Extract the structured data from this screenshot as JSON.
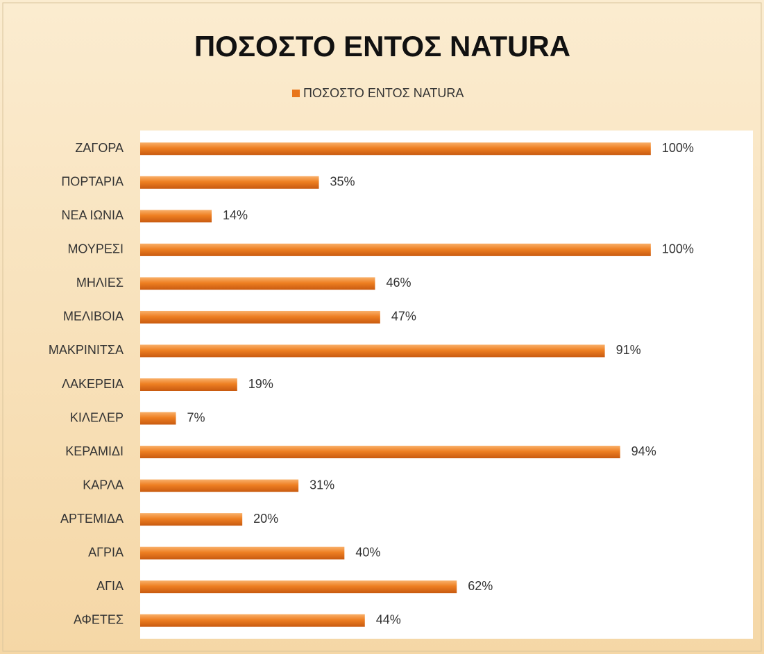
{
  "chart_data": {
    "type": "bar",
    "orientation": "horizontal",
    "title": "ΠΟΣΟΣΤΟ ΕΝΤΟΣ NATURA",
    "categories": [
      "ΖΑΓΟΡΑ",
      "ΠΟΡΤΑΡΙΑ",
      "ΝΕΑ ΙΩΝΙΑ",
      "ΜΟΥΡΕΣΙ",
      "ΜΗΛΙΕΣ",
      "ΜΕΛΙΒΟΙΑ",
      "ΜΑΚΡΙΝΙΤΣΑ",
      "ΛΑΚΕΡΕΙΑ",
      "ΚΙΛΕΛΕΡ",
      "ΚΕΡΑΜΙΔΙ",
      "ΚΑΡΛΑ",
      "ΑΡΤΕΜΙΔΑ",
      "ΑΓΡΙΑ",
      "ΑΓΙΑ",
      "ΑΦΕΤΕΣ"
    ],
    "series": [
      {
        "name": "ΠΟΣΟΣΤΟ ΕΝΤΟΣ NATURA",
        "color": "#e8761c",
        "values": [
          100,
          35,
          14,
          100,
          46,
          47,
          91,
          19,
          7,
          94,
          31,
          20,
          40,
          62,
          44
        ],
        "value_labels": [
          "100%",
          "35%",
          "14%",
          "100%",
          "46%",
          "47%",
          "91%",
          "19%",
          "7%",
          "94%",
          "31%",
          "20%",
          "40%",
          "62%",
          "44%"
        ]
      }
    ],
    "xlim": [
      0,
      120
    ],
    "legend": "top"
  }
}
